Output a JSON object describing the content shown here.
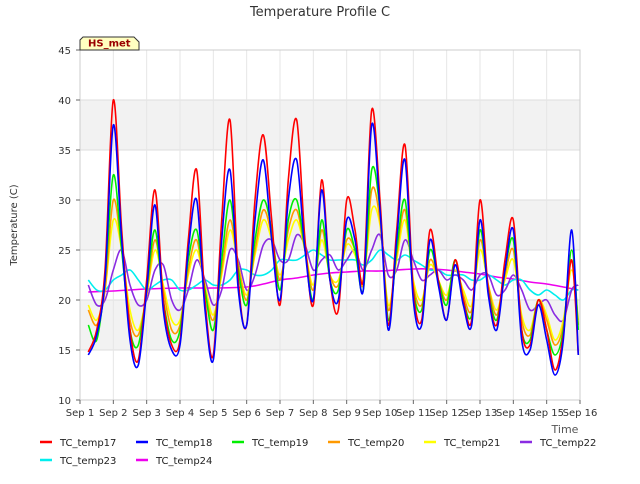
{
  "chart_data": {
    "type": "line",
    "title": "Temperature Profile C",
    "xlabel": "Time",
    "ylabel": "Temperature (C)",
    "ylim": [
      10,
      45
    ],
    "yticks": [
      10,
      15,
      20,
      25,
      30,
      35,
      40,
      45
    ],
    "xlim": [
      0,
      15
    ],
    "xticks": [
      0,
      1,
      2,
      3,
      4,
      5,
      6,
      7,
      8,
      9,
      10,
      11,
      12,
      13,
      14,
      15
    ],
    "xtick_labels": [
      "Sep 1",
      "Sep 2",
      "Sep 3",
      "Sep 4",
      "Sep 5",
      "Sep 6",
      "Sep 7",
      "Sep 8",
      "Sep 9",
      "Sep 10",
      "Sep 11",
      "Sep 12",
      "Sep 13",
      "Sep 14",
      "Sep 15",
      "Sep 16"
    ],
    "grid": true,
    "background_bands": "alternating",
    "annotation": "HS_met",
    "legend_position": "bottom",
    "series": [
      {
        "name": "TC_temp17",
        "color": "#ff0000",
        "x": [
          0.25,
          0.5,
          0.75,
          1.0,
          1.25,
          1.5,
          1.75,
          2.0,
          2.25,
          2.5,
          2.75,
          3.0,
          3.25,
          3.5,
          3.75,
          4.0,
          4.25,
          4.5,
          4.75,
          5.0,
          5.25,
          5.5,
          5.75,
          6.0,
          6.25,
          6.5,
          6.75,
          7.0,
          7.25,
          7.5,
          7.75,
          8.0,
          8.25,
          8.5,
          8.75,
          9.0,
          9.25,
          9.5,
          9.75,
          10.0,
          10.25,
          10.5,
          10.75,
          11.0,
          11.25,
          11.5,
          11.75,
          12.0,
          12.25,
          12.5,
          12.75,
          13.0,
          13.25,
          13.5,
          13.75,
          14.0,
          14.25,
          14.5,
          14.75,
          14.95
        ],
        "y": [
          14.8,
          17,
          23,
          40,
          27,
          17,
          14,
          22,
          31,
          20,
          15.5,
          16,
          26,
          33,
          20,
          14.5,
          28,
          38,
          22,
          17.5,
          30,
          36.5,
          28,
          19.5,
          32,
          38,
          26,
          19.5,
          32,
          22,
          19,
          30,
          27,
          22,
          39,
          30,
          17.5,
          27,
          35.5,
          21,
          18,
          27,
          22,
          18,
          24,
          20,
          18,
          30,
          21,
          17.5,
          24,
          28,
          17,
          15.5,
          20,
          17,
          13,
          16.5,
          24,
          14.5
        ]
      },
      {
        "name": "TC_temp18",
        "color": "#0000ff",
        "x": [
          0.25,
          0.5,
          0.75,
          1.0,
          1.25,
          1.5,
          1.75,
          2.0,
          2.25,
          2.5,
          2.75,
          3.0,
          3.25,
          3.5,
          3.75,
          4.0,
          4.25,
          4.5,
          4.75,
          5.0,
          5.25,
          5.5,
          5.75,
          6.0,
          6.25,
          6.5,
          6.75,
          7.0,
          7.25,
          7.5,
          7.75,
          8.0,
          8.25,
          8.5,
          8.75,
          9.0,
          9.25,
          9.5,
          9.75,
          10.0,
          10.25,
          10.5,
          10.75,
          11.0,
          11.25,
          11.5,
          11.75,
          12.0,
          12.25,
          12.5,
          12.75,
          13.0,
          13.25,
          13.5,
          13.75,
          14.0,
          14.25,
          14.5,
          14.75,
          14.95
        ],
        "y": [
          14.5,
          16.5,
          22,
          37.5,
          26,
          16,
          13.5,
          21,
          29.5,
          19,
          15,
          15.5,
          25,
          30,
          19,
          14,
          26,
          33,
          21,
          17.5,
          28,
          34,
          26,
          20,
          30,
          34,
          25,
          20,
          31,
          22,
          20,
          28,
          26,
          21,
          37.5,
          29,
          17,
          26,
          34,
          20,
          17.5,
          26,
          21.5,
          18,
          23.5,
          19.5,
          17.5,
          28,
          20.5,
          17,
          23,
          27,
          16,
          15,
          19.5,
          16,
          12.5,
          16,
          27,
          14.5
        ]
      },
      {
        "name": "TC_temp19",
        "color": "#00ee00",
        "x": [
          0.25,
          0.5,
          0.75,
          1.0,
          1.25,
          1.5,
          1.75,
          2.0,
          2.25,
          2.5,
          2.75,
          3.0,
          3.25,
          3.5,
          3.75,
          4.0,
          4.25,
          4.5,
          4.75,
          5.0,
          5.25,
          5.5,
          5.75,
          6.0,
          6.25,
          6.5,
          6.75,
          7.0,
          7.25,
          7.5,
          7.75,
          8.0,
          8.25,
          8.5,
          8.75,
          9.0,
          9.25,
          9.5,
          9.75,
          10.0,
          10.25,
          10.5,
          10.75,
          11.0,
          11.25,
          11.5,
          11.75,
          12.0,
          12.25,
          12.5,
          12.75,
          13.0,
          13.25,
          13.5,
          13.75,
          14.0,
          14.25,
          14.5,
          14.75,
          14.95
        ],
        "y": [
          17.5,
          16,
          22,
          32.5,
          25,
          17,
          15.5,
          21,
          27,
          20,
          16,
          17,
          24,
          27,
          21,
          17,
          24,
          30,
          23,
          19.5,
          26,
          30,
          27,
          21,
          28,
          30,
          25,
          20,
          28,
          22,
          21,
          27,
          25,
          21,
          33,
          29,
          18,
          25,
          30,
          21,
          19,
          25,
          22,
          19.5,
          24,
          20,
          18.5,
          27,
          21,
          18,
          23,
          26,
          17,
          16,
          20,
          17,
          14.5,
          17,
          25,
          17
        ]
      },
      {
        "name": "TC_temp20",
        "color": "#ff9900",
        "x": [
          0.25,
          0.5,
          0.75,
          1.0,
          1.25,
          1.5,
          1.75,
          2.0,
          2.25,
          2.5,
          2.75,
          3.0,
          3.25,
          3.5,
          3.75,
          4.0,
          4.25,
          4.5,
          4.75,
          5.0,
          5.25,
          5.5,
          5.75,
          6.0,
          6.25,
          6.5,
          6.75,
          7.0,
          7.25,
          7.5,
          7.75,
          8.0,
          8.25,
          8.5,
          8.75,
          9.0,
          9.25,
          9.5,
          9.75,
          10.0,
          10.25,
          10.5,
          10.75,
          11.0,
          11.25,
          11.5,
          11.75,
          12.0,
          12.25,
          12.5,
          12.75,
          13.0,
          13.25,
          13.5,
          13.75,
          14.0,
          14.25,
          14.5,
          14.75,
          14.95
        ],
        "y": [
          19,
          17.5,
          21,
          30,
          25,
          18,
          16.5,
          20.5,
          26,
          21,
          17,
          17.5,
          23,
          26,
          21,
          18,
          23,
          28,
          23.5,
          20,
          25,
          29,
          26.5,
          22,
          27,
          29,
          25,
          21,
          27,
          22.5,
          21.5,
          26,
          25,
          21.5,
          31,
          28,
          19,
          24.5,
          29,
          21.5,
          19.5,
          24,
          22,
          20,
          23.5,
          20.5,
          19,
          26,
          21.5,
          18.5,
          22.5,
          25,
          18,
          16.5,
          20,
          18,
          15.5,
          17.5,
          24,
          17.5
        ]
      },
      {
        "name": "TC_temp21",
        "color": "#ffff00",
        "x": [
          0.25,
          0.5,
          0.75,
          1.0,
          1.25,
          1.5,
          1.75,
          2.0,
          2.25,
          2.5,
          2.75,
          3.0,
          3.25,
          3.5,
          3.75,
          4.0,
          4.25,
          4.5,
          4.75,
          5.0,
          5.25,
          5.5,
          5.75,
          6.0,
          6.25,
          6.5,
          6.75,
          7.0,
          7.25,
          7.5,
          7.75,
          8.0,
          8.25,
          8.5,
          8.75,
          9.0,
          9.25,
          9.5,
          9.75,
          10.0,
          10.25,
          10.5,
          10.75,
          11.0,
          11.25,
          11.5,
          11.75,
          12.0,
          12.25,
          12.5,
          12.75,
          13.0,
          13.25,
          13.5,
          13.75,
          14.0,
          14.25,
          14.5,
          14.75,
          14.95
        ],
        "y": [
          19.5,
          18,
          21,
          28,
          25,
          19,
          17,
          20.5,
          25,
          21.5,
          18,
          18,
          22.5,
          25,
          21.5,
          18.5,
          22.5,
          27,
          23.5,
          20.5,
          24.5,
          28,
          26,
          22.5,
          26,
          28,
          25,
          21.5,
          26,
          22.5,
          22,
          25.5,
          24.5,
          22,
          29,
          27.5,
          19.5,
          24,
          28,
          22,
          20,
          23.5,
          22,
          20.5,
          23,
          21,
          19.5,
          25,
          21.5,
          19,
          22,
          24,
          18.5,
          17,
          20,
          18.5,
          16,
          18,
          23,
          18
        ]
      },
      {
        "name": "TC_temp22",
        "color": "#8a2be2",
        "x": [
          0.25,
          0.5,
          0.75,
          1.0,
          1.25,
          1.5,
          1.75,
          2.0,
          2.25,
          2.5,
          2.75,
          3.0,
          3.25,
          3.5,
          3.75,
          4.0,
          4.25,
          4.5,
          4.75,
          5.0,
          5.25,
          5.5,
          5.75,
          6.0,
          6.25,
          6.5,
          6.75,
          7.0,
          7.25,
          7.5,
          7.75,
          8.0,
          8.25,
          8.5,
          8.75,
          9.0,
          9.25,
          9.5,
          9.75,
          10.0,
          10.25,
          10.5,
          10.75,
          11.0,
          11.25,
          11.5,
          11.75,
          12.0,
          12.25,
          12.5,
          12.75,
          13.0,
          13.25,
          13.5,
          13.75,
          14.0,
          14.25,
          14.5,
          14.75,
          14.95
        ],
        "y": [
          21.5,
          19.5,
          20,
          23,
          25,
          21.5,
          19.5,
          20,
          23,
          23.5,
          20,
          19,
          21,
          24,
          22,
          19.5,
          21,
          25,
          24,
          21,
          22.5,
          25.5,
          26,
          24,
          24,
          26.5,
          25.5,
          23,
          24,
          24.5,
          23,
          24,
          25,
          23,
          25,
          26.5,
          22.5,
          23,
          26,
          24,
          22,
          22.5,
          23,
          22,
          22.5,
          22,
          21,
          22.5,
          22.5,
          20.5,
          21,
          22.5,
          21,
          19,
          19.5,
          20,
          18.5,
          18,
          21,
          21.5
        ]
      },
      {
        "name": "TC_temp23",
        "color": "#00eeee",
        "x": [
          0.25,
          0.5,
          0.75,
          1.0,
          1.25,
          1.5,
          1.75,
          2.0,
          2.25,
          2.5,
          2.75,
          3.0,
          3.25,
          3.5,
          3.75,
          4.0,
          4.25,
          4.5,
          4.75,
          5.0,
          5.25,
          5.5,
          5.75,
          6.0,
          6.25,
          6.5,
          6.75,
          7.0,
          7.25,
          7.5,
          7.75,
          8.0,
          8.25,
          8.5,
          8.75,
          9.0,
          9.25,
          9.5,
          9.75,
          10.0,
          10.25,
          10.5,
          10.75,
          11.0,
          11.25,
          11.5,
          11.75,
          12.0,
          12.25,
          12.5,
          12.75,
          13.0,
          13.25,
          13.5,
          13.75,
          14.0,
          14.25,
          14.5,
          14.75,
          14.95
        ],
        "y": [
          22,
          21,
          21,
          22,
          22.5,
          23,
          22,
          21,
          21.5,
          22,
          22,
          21,
          21,
          21.5,
          22,
          21.5,
          21.5,
          22,
          23,
          23,
          22.5,
          22.5,
          23,
          24,
          24,
          24,
          24.5,
          25,
          24.5,
          24,
          24,
          24,
          24,
          23.5,
          24,
          25,
          24.5,
          24,
          24.5,
          24,
          23.5,
          23,
          23,
          22.5,
          22.5,
          22.5,
          22,
          22,
          22.5,
          22,
          21.5,
          22,
          22,
          21,
          20.5,
          21,
          20.5,
          20,
          21,
          21
        ]
      },
      {
        "name": "TC_temp24",
        "color": "#ee00ee",
        "x": [
          0.25,
          1.0,
          2.0,
          3.0,
          4.0,
          5.0,
          5.5,
          6.0,
          6.5,
          7.0,
          7.5,
          8.0,
          8.5,
          9.0,
          9.5,
          10.0,
          10.5,
          11.0,
          11.5,
          12.0,
          12.5,
          13.0,
          13.5,
          14.0,
          14.5,
          14.95
        ],
        "y": [
          20.8,
          20.9,
          21.1,
          21.2,
          21.2,
          21.3,
          21.6,
          22,
          22.2,
          22.5,
          22.7,
          22.8,
          22.9,
          22.9,
          23,
          23.1,
          23.1,
          23,
          22.8,
          22.6,
          22.3,
          22.1,
          21.8,
          21.6,
          21.3,
          21
        ]
      }
    ]
  }
}
